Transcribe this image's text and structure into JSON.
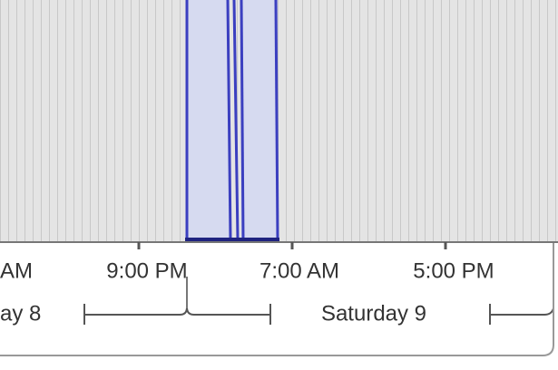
{
  "timeline": {
    "time_labels": [
      "AM",
      "9:00 PM",
      "7:00 AM",
      "5:00 PM"
    ],
    "day_labels": [
      "ay 8",
      "Saturday 9"
    ]
  }
}
